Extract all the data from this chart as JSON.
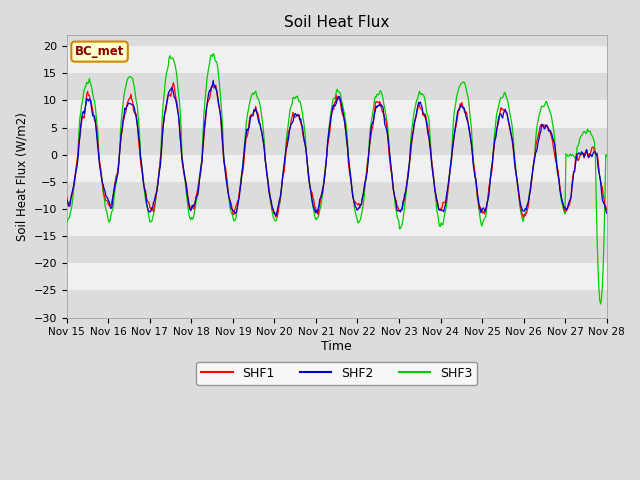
{
  "title": "Soil Heat Flux",
  "ylabel": "Soil Heat Flux (W/m2)",
  "xlabel": "Time",
  "ylim": [
    -30,
    22
  ],
  "yticks": [
    -30,
    -25,
    -20,
    -15,
    -10,
    -5,
    0,
    5,
    10,
    15,
    20
  ],
  "bg_color": "#dcdcdc",
  "annotation_label": "BC_met",
  "annotation_bg": "#ffffcc",
  "annotation_border": "#cc8800",
  "annotation_text_color": "#880000",
  "colors": {
    "SHF1": "#ff0000",
    "SHF2": "#0000cc",
    "SHF3": "#00cc00"
  },
  "legend_labels": [
    "SHF1",
    "SHF2",
    "SHF3"
  ],
  "x_tick_labels": [
    "Nov 15",
    "Nov 16",
    "Nov 17",
    "Nov 18",
    "Nov 19",
    "Nov 20",
    "Nov 21",
    "Nov 22",
    "Nov 23",
    "Nov 24",
    "Nov 25",
    "Nov 26",
    "Nov 27",
    "Nov 28"
  ],
  "band_colors": [
    "#dcdcdc",
    "#f0f0f0"
  ]
}
